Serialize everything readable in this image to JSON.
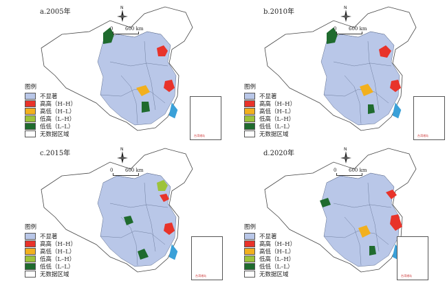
{
  "panels": [
    {
      "title": "a.2005年"
    },
    {
      "title": "b.2010年"
    },
    {
      "title": "c.2015年"
    },
    {
      "title": "d.2020年"
    }
  ],
  "compass_label": "N",
  "scale": {
    "zero": "0",
    "distance": "600 km"
  },
  "legend": {
    "title": "图例",
    "items": [
      {
        "label": "不显著",
        "color": "#b9c7e8"
      },
      {
        "label": "高高（H–H）",
        "color": "#e8332a"
      },
      {
        "label": "高低（H–L）",
        "color": "#f2b01e"
      },
      {
        "label": "低高（L–H）",
        "color": "#9dc33b"
      },
      {
        "label": "低低（L–L）",
        "color": "#1f6b2e"
      },
      {
        "label": "无数据区域",
        "color": "#ffffff"
      }
    ]
  },
  "inset_caption": "台湾诸岛",
  "colors": {
    "outline": "#444444",
    "border": "#5a6a8a",
    "sea": "#3aa0d8"
  }
}
